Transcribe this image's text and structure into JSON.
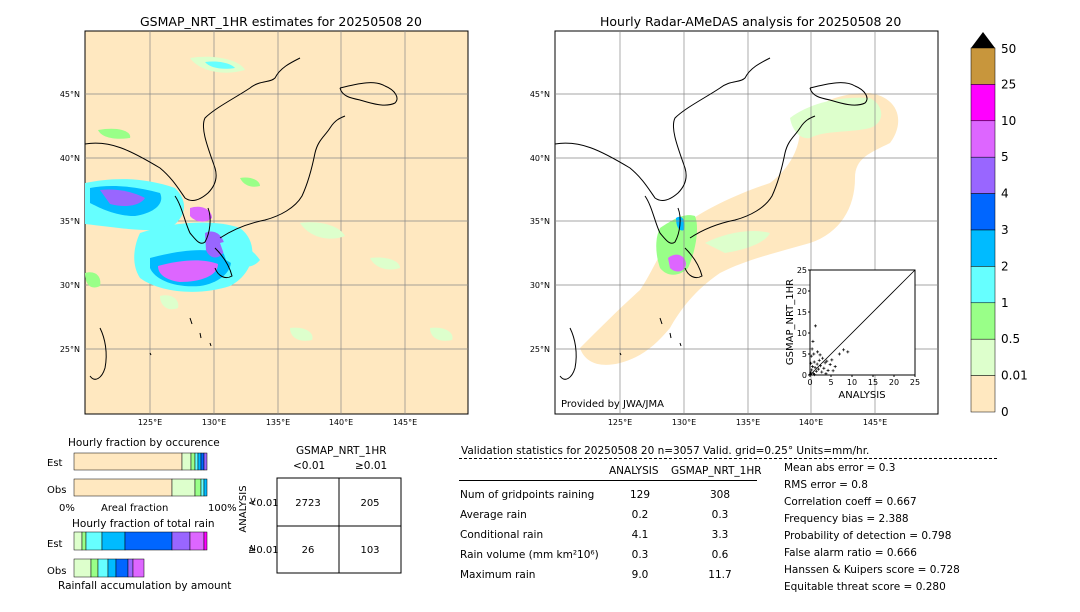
{
  "left_map": {
    "title": "GSMAP_NRT_1HR estimates for 20250508 20",
    "lat_ticks": [
      "45°N",
      "40°N",
      "35°N",
      "30°N",
      "25°N"
    ],
    "lon_ticks": [
      "125°E",
      "130°E",
      "135°E",
      "140°E",
      "145°E"
    ]
  },
  "right_map": {
    "title": "Hourly Radar-AMeDAS analysis for 20250508 20",
    "lat_ticks": [
      "45°N",
      "40°N",
      "35°N",
      "30°N",
      "25°N"
    ],
    "lon_ticks": [
      "125°E",
      "130°E",
      "135°E",
      "140°E",
      "145°E"
    ],
    "credit": "Provided by JWA/JMA"
  },
  "colorbar": {
    "labels": [
      "50",
      "25",
      "10",
      "5",
      "4",
      "3",
      "2",
      "1",
      "0.5",
      "0.01",
      "0"
    ],
    "colors": [
      "#c8963c",
      "#ff00ff",
      "#dd66ff",
      "#9966ff",
      "#0066ff",
      "#00bbff",
      "#66ffff",
      "#99ff88",
      "#ddffcc",
      "#ffe8c0"
    ]
  },
  "occurrence": {
    "title": "Hourly fraction by occurence",
    "rows": [
      "Est",
      "Obs"
    ],
    "xlabel": "Areal fraction",
    "x0": "0%",
    "x1": "100%"
  },
  "total_rain": {
    "title": "Hourly fraction of total rain",
    "rows": [
      "Est",
      "Obs"
    ],
    "xlabel": "Rainfall accumulation by amount"
  },
  "contingency": {
    "title": "GSMAP_NRT_1HR",
    "col_lt": "<0.01",
    "col_ge": "≥0.01",
    "row_axis": "ANALYSIS",
    "row_lt": "<0.01",
    "row_ge": "≥0.01",
    "cells": [
      "2723",
      "205",
      "26",
      "103"
    ]
  },
  "validation": {
    "header": "Validation statistics for 20250508 20  n=3057 Valid. grid=0.25° Units=mm/hr.",
    "col_analysis": "ANALYSIS",
    "col_gsmap": "GSMAP_NRT_1HR",
    "rows": [
      {
        "label": "Num of gridpoints raining",
        "analysis": "129",
        "gsmap": "308"
      },
      {
        "label": "Average rain",
        "analysis": "0.2",
        "gsmap": "0.3"
      },
      {
        "label": "Conditional rain",
        "analysis": "4.1",
        "gsmap": "3.3"
      },
      {
        "label": "Rain volume (mm km²10⁶)",
        "analysis": "0.3",
        "gsmap": "0.6"
      },
      {
        "label": "Maximum rain",
        "analysis": "9.0",
        "gsmap": "11.7"
      }
    ],
    "scores": [
      "Mean abs error =    0.3",
      "RMS error =    0.8",
      "Correlation coeff =  0.667",
      "Frequency bias =  2.388",
      "Probability of detection =  0.798",
      "False alarm ratio =  0.666",
      "Hanssen & Kuipers score =  0.728",
      "Equitable threat score =  0.280"
    ]
  },
  "chart_data": {
    "type": "scatter",
    "title": "",
    "xlabel": "ANALYSIS",
    "ylabel": "GSMAP_NRT_1HR",
    "xlim": [
      0,
      25
    ],
    "ylim": [
      0,
      25
    ],
    "ticks": [
      "0",
      "5",
      "10",
      "15",
      "20",
      "25"
    ],
    "points": [
      [
        0.2,
        0.5
      ],
      [
        0.4,
        1.2
      ],
      [
        0.6,
        2.0
      ],
      [
        0.8,
        0.4
      ],
      [
        1.0,
        3.1
      ],
      [
        1.2,
        1.8
      ],
      [
        1.5,
        0.9
      ],
      [
        1.7,
        2.6
      ],
      [
        2.0,
        1.4
      ],
      [
        2.2,
        3.5
      ],
      [
        2.5,
        2.2
      ],
      [
        2.8,
        0.7
      ],
      [
        3.0,
        4.0
      ],
      [
        3.3,
        1.6
      ],
      [
        3.6,
        2.9
      ],
      [
        4.0,
        3.3
      ],
      [
        4.3,
        1.1
      ],
      [
        4.8,
        2.5
      ],
      [
        5.2,
        3.6
      ],
      [
        6.0,
        2.0
      ],
      [
        0.3,
        4.5
      ],
      [
        0.5,
        6.2
      ],
      [
        0.9,
        5.0
      ],
      [
        1.3,
        11.7
      ],
      [
        0.7,
        8.0
      ],
      [
        1.8,
        5.5
      ],
      [
        2.4,
        4.8
      ],
      [
        7.0,
        5.0
      ],
      [
        8.0,
        6.0
      ],
      [
        9.0,
        5.5
      ],
      [
        0.1,
        0.2
      ],
      [
        0.2,
        2.8
      ],
      [
        1.1,
        0.1
      ],
      [
        3.8,
        0.3
      ],
      [
        5.5,
        1.0
      ]
    ]
  }
}
